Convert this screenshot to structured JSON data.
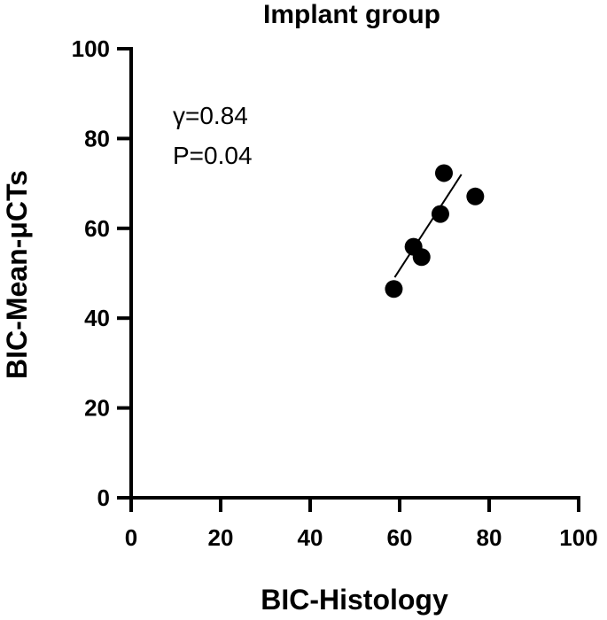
{
  "chart_data": {
    "type": "scatter",
    "title": "Implant group",
    "xlabel": "BIC-Histology",
    "ylabel": "BIC-Mean-μCTs",
    "xlim": [
      0,
      100
    ],
    "ylim": [
      0,
      100
    ],
    "x_ticks": [
      "0",
      "20",
      "40",
      "60",
      "80",
      "100"
    ],
    "y_ticks": [
      "0",
      "20",
      "40",
      "60",
      "80",
      "100"
    ],
    "annotations": [
      "γ=0.84",
      "P=0.04"
    ],
    "points": [
      {
        "x": 58.7,
        "y": 46.5
      },
      {
        "x": 63.1,
        "y": 55.9
      },
      {
        "x": 64.9,
        "y": 53.6
      },
      {
        "x": 69.1,
        "y": 63.2
      },
      {
        "x": 69.9,
        "y": 72.3
      },
      {
        "x": 76.9,
        "y": 67.1
      }
    ],
    "fit_line": {
      "x": [
        58.9,
        73.8
      ],
      "y": [
        49.1,
        72.0
      ]
    },
    "grid": false,
    "legend": "none"
  }
}
